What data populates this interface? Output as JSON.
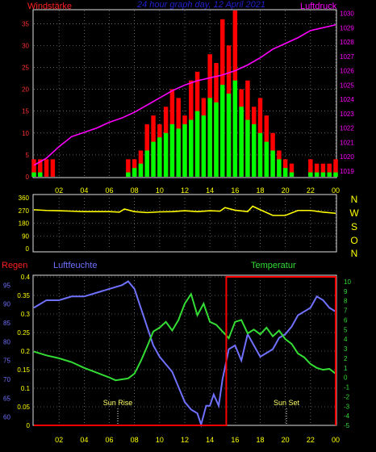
{
  "header": {
    "wind_label": "Windstärke",
    "title": "24 hour graph day, 12 April 2021",
    "pressure_label": "Luftdruck"
  },
  "middle": {
    "compass_labels": [
      "N",
      "W",
      "S",
      "O",
      "N"
    ]
  },
  "bottom": {
    "rain_label": "Regen",
    "humidity_label": "Luftfeuchte",
    "temperature_label": "Temperatur",
    "sunrise_label": "Sun Rise",
    "sunset_label": "Sun Set"
  },
  "colors": {
    "wind_gust": "#ff0000",
    "wind_avg": "#00ff00",
    "pressure": "#ff00ff",
    "direction": "#ffff00",
    "rain": "#ff0000",
    "humidity": "#7070ff",
    "temperature": "#33dd33",
    "time_ticks": "#ffff00",
    "grid": "#a0a0a0"
  },
  "chart_data": [
    {
      "type": "bar",
      "name": "wind_pressure",
      "xlabel": "",
      "x_ticks": [
        "02",
        "04",
        "06",
        "08",
        "10",
        "12",
        "14",
        "16",
        "18",
        "20",
        "22",
        "00"
      ],
      "y_left_ticks": [
        "0",
        "5",
        "10",
        "15",
        "20",
        "25",
        "30",
        "35"
      ],
      "y_left_range": [
        0,
        38
      ],
      "y_right_ticks": [
        "1019",
        "1020",
        "1021",
        "1022",
        "1023",
        "1024",
        "1025",
        "1026",
        "1027",
        "1028",
        "1029",
        "1030"
      ],
      "y_right_range": [
        1018.6,
        1030.2
      ],
      "grid": true,
      "series": [
        {
          "name": "Windstärke",
          "kind": "bar",
          "color": "#ff0000",
          "x_hours": [
            0,
            0.5,
            1,
            1.5,
            2,
            2.5,
            3,
            3.5,
            4,
            4.5,
            5,
            5.5,
            6,
            6.5,
            7,
            7.5,
            8,
            8.5,
            9,
            9.5,
            10,
            10.5,
            11,
            11.5,
            12,
            12.5,
            13,
            13.5,
            14,
            14.5,
            15,
            15.5,
            16,
            16.5,
            17,
            17.5,
            18,
            18.5,
            19,
            19.5,
            20,
            20.5,
            21,
            21.5,
            22,
            22.5,
            23,
            23.5,
            24
          ],
          "values": [
            4,
            4,
            4,
            4,
            0,
            0,
            0,
            0,
            0,
            0,
            0,
            0,
            0,
            0,
            0,
            4,
            4,
            6,
            12,
            14,
            12,
            16,
            20,
            18,
            14,
            22,
            24,
            18,
            28,
            26,
            36,
            30,
            38,
            20,
            22,
            16,
            18,
            14,
            10,
            6,
            4,
            3,
            0,
            0,
            4,
            3,
            3,
            3,
            4
          ]
        },
        {
          "name": "Wind average",
          "kind": "bar",
          "color": "#00ff00",
          "x_hours": [
            0,
            0.5,
            1,
            1.5,
            2,
            2.5,
            3,
            3.5,
            4,
            4.5,
            5,
            5.5,
            6,
            6.5,
            7,
            7.5,
            8,
            8.5,
            9,
            9.5,
            10,
            10.5,
            11,
            11.5,
            12,
            12.5,
            13,
            13.5,
            14,
            14.5,
            15,
            15.5,
            16,
            16.5,
            17,
            17.5,
            18,
            18.5,
            19,
            19.5,
            20,
            20.5,
            21,
            21.5,
            22,
            22.5,
            23,
            23.5,
            24
          ],
          "values": [
            1,
            1,
            0,
            0,
            0,
            0,
            0,
            0,
            0,
            0,
            0,
            0,
            0,
            0,
            0,
            1,
            2,
            3,
            6,
            8,
            9,
            10,
            12,
            11,
            12,
            13,
            15,
            14,
            18,
            17,
            21,
            19,
            22,
            16,
            13,
            12,
            10,
            8,
            6,
            4,
            2,
            1,
            0,
            0,
            1,
            1,
            1,
            1,
            1
          ]
        },
        {
          "name": "Luftdruck",
          "kind": "line",
          "color": "#ff00ff",
          "x_hours": [
            0,
            1,
            2,
            3,
            4,
            5,
            6,
            7,
            8,
            9,
            10,
            11,
            12,
            13,
            14,
            15,
            16,
            17,
            18,
            19,
            20,
            21,
            22,
            23,
            24
          ],
          "values": [
            1019.4,
            1019.9,
            1020.7,
            1021.4,
            1021.7,
            1022.0,
            1022.4,
            1022.7,
            1023.1,
            1023.6,
            1024.1,
            1024.6,
            1025.0,
            1025.3,
            1025.5,
            1025.7,
            1026.0,
            1026.4,
            1026.9,
            1027.5,
            1027.9,
            1028.3,
            1028.8,
            1029.0,
            1029.2
          ]
        }
      ]
    },
    {
      "type": "line",
      "name": "wind_direction",
      "y_ticks": [
        "360",
        "270",
        "180",
        "90",
        "0"
      ],
      "y_range": [
        0,
        360
      ],
      "x_ticks": [],
      "series": [
        {
          "name": "Direction",
          "color": "#ffff00",
          "x_hours": [
            0,
            1,
            2,
            3,
            4,
            5,
            6,
            6.8,
            7.2,
            8,
            9,
            10,
            11,
            12,
            13,
            14,
            14.8,
            15.2,
            16,
            17,
            17.4,
            18,
            19,
            20,
            21,
            22,
            23,
            24
          ],
          "values": [
            275,
            270,
            268,
            265,
            262,
            262,
            262,
            258,
            280,
            262,
            255,
            260,
            262,
            268,
            262,
            268,
            265,
            290,
            272,
            262,
            300,
            275,
            235,
            235,
            270,
            270,
            258,
            250
          ]
        }
      ]
    },
    {
      "type": "line",
      "name": "rain_humidity_temperature",
      "x_ticks": [
        "02",
        "04",
        "06",
        "08",
        "10",
        "12",
        "14",
        "16",
        "18",
        "20",
        "22",
        "00"
      ],
      "y_rain_ticks": [
        "0",
        "0.05",
        "0.1",
        "0.15",
        "0.2",
        "0.25",
        "0.3",
        "0.35",
        "0.4"
      ],
      "y_rain_range": [
        0,
        0.4
      ],
      "y_humidity_ticks": [
        "60",
        "65",
        "70",
        "75",
        "80",
        "85",
        "90",
        "95"
      ],
      "y_humidity_range": [
        57.8,
        97.2
      ],
      "y_temperature_ticks": [
        "-5",
        "-4",
        "-3",
        "-2",
        "-1",
        "0",
        "1",
        "2",
        "3",
        "4",
        "5",
        "6",
        "7",
        "8",
        "9",
        "10"
      ],
      "y_temperature_range": [
        -5,
        10.5
      ],
      "series": [
        {
          "name": "Regen",
          "color": "#ff0000",
          "x_hours": [
            0,
            15.3,
            15.3,
            24,
            24
          ],
          "values": [
            0,
            0,
            0.4,
            0.4,
            0
          ]
        },
        {
          "name": "Luftfeuchte",
          "color": "#7070ff",
          "x_hours": [
            0,
            0.5,
            1,
            2,
            3,
            4,
            5,
            6,
            7,
            7.5,
            8,
            8.5,
            9,
            9.5,
            10,
            10.5,
            11,
            11.5,
            12,
            12.5,
            13,
            13.3,
            13.7,
            14,
            14.3,
            14.7,
            15,
            15.5,
            16,
            16.5,
            17,
            17.5,
            18,
            18.5,
            19,
            19.5,
            20,
            20.5,
            21,
            22,
            22.5,
            23,
            23.5,
            24
          ],
          "values": [
            89,
            90,
            91,
            91,
            92,
            92,
            93,
            94,
            95,
            96,
            94,
            89,
            84,
            79,
            76,
            74,
            72,
            68,
            64,
            62,
            61,
            58,
            63,
            63,
            66,
            63,
            70,
            78,
            79,
            75,
            82,
            79,
            76,
            77,
            78,
            81,
            82,
            84,
            87,
            89,
            92,
            91,
            89,
            88
          ]
        },
        {
          "name": "Temperatur",
          "color": "#33dd33",
          "x_hours": [
            0,
            1,
            2,
            3,
            4,
            5,
            6,
            6.5,
            7,
            7.5,
            8,
            8.5,
            9,
            9.5,
            10,
            10.5,
            11,
            11.5,
            12,
            12.5,
            13,
            13.5,
            14,
            14.5,
            15,
            15.5,
            16,
            16.5,
            17,
            17.5,
            18,
            18.5,
            19,
            19.5,
            20,
            20.5,
            21,
            21.5,
            22,
            22.5,
            23,
            23.5,
            24
          ],
          "values": [
            2.7,
            2.3,
            2.0,
            1.6,
            1.0,
            0.5,
            0.0,
            -0.3,
            -0.2,
            -0.1,
            0.4,
            1.7,
            3.2,
            4.8,
            5.2,
            5.8,
            4.9,
            6.0,
            7.7,
            8.7,
            6.5,
            7.7,
            5.8,
            5.5,
            4.8,
            4.1,
            5.8,
            6.0,
            4.6,
            5.0,
            4.5,
            5.2,
            4.3,
            4.9,
            4.0,
            3.5,
            2.5,
            2.1,
            1.4,
            1.0,
            0.8,
            0.9,
            0.4
          ]
        }
      ]
    }
  ]
}
